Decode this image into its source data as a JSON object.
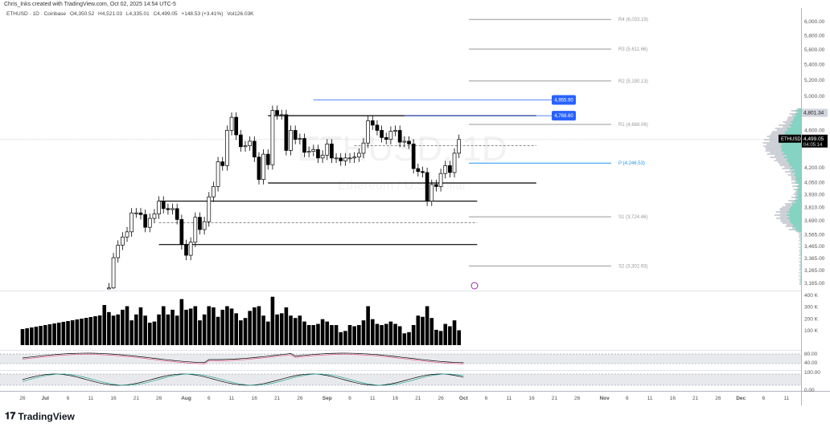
{
  "credit": "Chris_Inks created with TradingView.com, Oct 02, 2025 14:54 UTC-5",
  "legend": {
    "symbol": "ETHUSD · 1D · Coinbase",
    "open": "O4,350.52",
    "high": "H4,521.03",
    "low": "L4,335.01",
    "close": "C4,499.05",
    "change": "+148.53 (+3.41%)",
    "volume": "Vol126.03K"
  },
  "watermark": {
    "symbol": "ETHUSD, 1D",
    "name": "Ethereum / U.S. Dollar"
  },
  "brand": "TradingView",
  "colors": {
    "accent": "#2962ff",
    "profile_up": "#7dd3c0",
    "profile_gray": "#c8cbd3",
    "candle": "#000000",
    "pivot_p": "#2196f3"
  },
  "price_badge": {
    "symbol": "ETHUSD",
    "price": "4,499.05",
    "countdown": "04:05:14"
  },
  "high_badge": "4,801.34",
  "alerts": [
    {
      "label": "4,955.90",
      "value": 4955.9
    },
    {
      "label": "4,768.60",
      "value": 4768.6
    }
  ],
  "pivots": [
    {
      "label": "R4 (6,033.19)",
      "value": 6033.19
    },
    {
      "label": "R3 (5,611.66)",
      "value": 5611.66
    },
    {
      "label": "R2 (5,190.13)",
      "value": 5190.13
    },
    {
      "label": "R1 (4,668.06)",
      "value": 4668.06
    },
    {
      "label": "P (4,246.53)",
      "value": 4246.53,
      "primary": true
    },
    {
      "label": "S1 (3,724.46)",
      "value": 3724.46
    },
    {
      "label": "S2 (3,302.93)",
      "value": 3302.93
    }
  ],
  "volume_axis": [
    "400 K",
    "300 K",
    "200 K",
    "100 K"
  ],
  "osc1_axis": [
    "80.00",
    "40.00"
  ],
  "osc2_axis": [
    "100.00",
    "0.00"
  ],
  "chart_data": {
    "type": "candlestick",
    "title": "ETHUSD · 1D · Coinbase",
    "scale": "log",
    "ylim": [
      3100,
      6150
    ],
    "y_ticks": [
      "6,000.00",
      "5,800.00",
      "5,600.00",
      "5,400.00",
      "5,200.00",
      "5,000.00",
      "4,600.00",
      "4,200.00",
      "4,050.00",
      "3,930.00",
      "3,810.00",
      "3,690.00",
      "3,565.00",
      "3,465.00",
      "3,365.00",
      "3,265.00",
      "3,165.00"
    ],
    "y_tick_values": [
      6000,
      5800,
      5600,
      5400,
      5200,
      5000,
      4600,
      4200,
      4050,
      3930,
      3810,
      3690,
      3565,
      3465,
      3365,
      3265,
      3165
    ],
    "x_ticks": [
      {
        "label": "26",
        "day": 0
      },
      {
        "label": "Jul",
        "day": 5
      },
      {
        "label": "6",
        "day": 10
      },
      {
        "label": "11",
        "day": 15
      },
      {
        "label": "16",
        "day": 20
      },
      {
        "label": "21",
        "day": 25
      },
      {
        "label": "26",
        "day": 30
      },
      {
        "label": "Aug",
        "day": 36
      },
      {
        "label": "6",
        "day": 41
      },
      {
        "label": "11",
        "day": 46
      },
      {
        "label": "16",
        "day": 51
      },
      {
        "label": "21",
        "day": 56
      },
      {
        "label": "26",
        "day": 61
      },
      {
        "label": "Sep",
        "day": 67
      },
      {
        "label": "6",
        "day": 72
      },
      {
        "label": "11",
        "day": 77
      },
      {
        "label": "16",
        "day": 82
      },
      {
        "label": "21",
        "day": 87
      },
      {
        "label": "26",
        "day": 92
      },
      {
        "label": "Oct",
        "day": 97
      },
      {
        "label": "6",
        "day": 102
      },
      {
        "label": "11",
        "day": 107
      },
      {
        "label": "16",
        "day": 112
      },
      {
        "label": "21",
        "day": 117
      },
      {
        "label": "26",
        "day": 122
      },
      {
        "label": "Nov",
        "day": 128
      },
      {
        "label": "6",
        "day": 133
      },
      {
        "label": "11",
        "day": 138
      },
      {
        "label": "16",
        "day": 143
      },
      {
        "label": "21",
        "day": 148
      },
      {
        "label": "26",
        "day": 153
      },
      {
        "label": "Dec",
        "day": 158
      },
      {
        "label": "6",
        "day": 163
      },
      {
        "label": "11",
        "day": 168
      }
    ],
    "first_candle_day": 18,
    "closes": [
      3010,
      3130,
      3370,
      3475,
      3545,
      3590,
      3760,
      3760,
      3745,
      3630,
      3710,
      3750,
      3870,
      3800,
      3790,
      3800,
      3700,
      3480,
      3390,
      3500,
      3720,
      3610,
      3680,
      3910,
      4010,
      4260,
      4220,
      4600,
      4750,
      4550,
      4420,
      4430,
      4480,
      4310,
      4080,
      4340,
      4230,
      4830,
      4780,
      4780,
      4380,
      4600,
      4500,
      4510,
      4360,
      4370,
      4390,
      4300,
      4330,
      4450,
      4300,
      4300,
      4270,
      4300,
      4300,
      4310,
      4350,
      4460,
      4710,
      4660,
      4600,
      4520,
      4500,
      4590,
      4600,
      4470,
      4480,
      4450,
      4190,
      4160,
      4150,
      3870,
      4030,
      4010,
      4140,
      4220,
      4150,
      4350.52,
      4499.05
    ],
    "volumes_k": [
      340,
      280,
      250,
      260,
      300,
      330,
      210,
      260,
      320,
      250,
      190,
      200,
      260,
      330,
      260,
      300,
      250,
      390,
      300,
      310,
      330,
      210,
      260,
      330,
      320,
      240,
      300,
      330,
      310,
      270,
      210,
      230,
      290,
      320,
      330,
      250,
      200,
      410,
      260,
      270,
      320,
      250,
      230,
      250,
      200,
      170,
      170,
      180,
      220,
      200,
      170,
      170,
      110,
      120,
      170,
      160,
      170,
      210,
      330,
      220,
      180,
      170,
      180,
      200,
      180,
      160,
      100,
      110,
      170,
      250,
      240,
      330,
      230,
      130,
      120,
      180,
      160,
      210,
      126
    ],
    "drawings": [
      {
        "type": "hline",
        "value": 4768.6,
        "from_day": 54,
        "to_day": 113,
        "color": "#000"
      },
      {
        "type": "hline",
        "value": 4045,
        "from_day": 54,
        "to_day": 113,
        "color": "#000"
      },
      {
        "type": "hline",
        "value": 4430,
        "from_day": 73,
        "to_day": 113,
        "color": "#000",
        "dashed": true
      },
      {
        "type": "hline",
        "value": 3870,
        "from_day": 30,
        "to_day": 100,
        "color": "#000"
      },
      {
        "type": "hline",
        "value": 3670,
        "from_day": 30,
        "to_day": 100,
        "color": "#000",
        "dashed": true
      },
      {
        "type": "hline",
        "value": 3480,
        "from_day": 30,
        "to_day": 100,
        "color": "#000"
      },
      {
        "type": "hline",
        "value": 4955.9,
        "from_day": 64,
        "to_day": 120,
        "color": "#2962ff"
      },
      {
        "type": "hline",
        "value": 4768.6,
        "from_day": 84,
        "to_day": 120,
        "color": "#2962ff"
      }
    ]
  }
}
